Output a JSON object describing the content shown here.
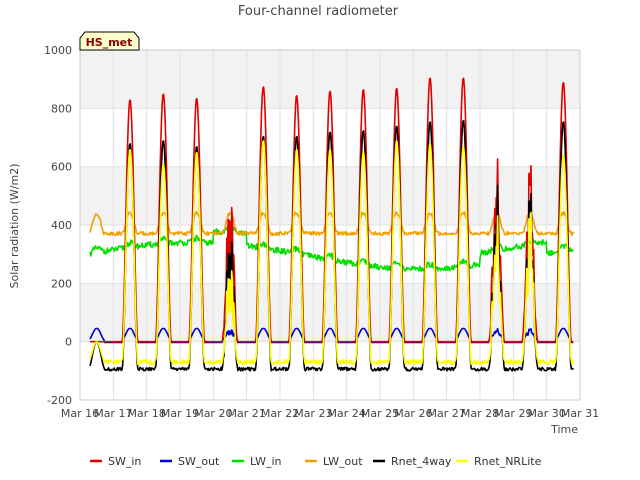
{
  "chart_data": {
    "type": "line",
    "title": "Four-channel radiometer",
    "xlabel": "Time",
    "ylabel": "Solar radiation (W/m2)",
    "badge": "HS_met",
    "ylim": [
      -200,
      1000
    ],
    "xlim": [
      16,
      31
    ],
    "yticks": [
      -200,
      0,
      200,
      400,
      600,
      800,
      1000
    ],
    "xticks": [
      {
        "v": 16,
        "label": "Mar 16"
      },
      {
        "v": 17,
        "label": "Mar 17"
      },
      {
        "v": 18,
        "label": "Mar 18"
      },
      {
        "v": 19,
        "label": "Mar 19"
      },
      {
        "v": 20,
        "label": "Mar 20"
      },
      {
        "v": 21,
        "label": "Mar 21"
      },
      {
        "v": 22,
        "label": "Mar 22"
      },
      {
        "v": 23,
        "label": "Mar 23"
      },
      {
        "v": 24,
        "label": "Mar 24"
      },
      {
        "v": 25,
        "label": "Mar 25"
      },
      {
        "v": 26,
        "label": "Mar 26"
      },
      {
        "v": 27,
        "label": "Mar 27"
      },
      {
        "v": 28,
        "label": "Mar 28"
      },
      {
        "v": 29,
        "label": "Mar 29"
      },
      {
        "v": 30,
        "label": "Mar 30"
      },
      {
        "v": 31,
        "label": "Mar 31"
      }
    ],
    "grid": true,
    "legend_position": "bottom",
    "x_range_data": [
      16.3,
      30.8
    ],
    "daily_peaks": [
      {
        "day": 17,
        "sw_in": 830,
        "rnet_4way": 680,
        "rnet_nrlite": 660
      },
      {
        "day": 18,
        "sw_in": 850,
        "rnet_4way": 690,
        "rnet_nrlite": 610
      },
      {
        "day": 19,
        "sw_in": 835,
        "rnet_4way": 670,
        "rnet_nrlite": 650
      },
      {
        "day": 20,
        "sw_in": 545,
        "rnet_4way": 420,
        "rnet_nrlite": 300
      },
      {
        "day": 21,
        "sw_in": 875,
        "rnet_4way": 705,
        "rnet_nrlite": 690
      },
      {
        "day": 22,
        "sw_in": 845,
        "rnet_4way": 705,
        "rnet_nrlite": 660
      },
      {
        "day": 23,
        "sw_in": 860,
        "rnet_4way": 720,
        "rnet_nrlite": 660
      },
      {
        "day": 24,
        "sw_in": 865,
        "rnet_4way": 725,
        "rnet_nrlite": 650
      },
      {
        "day": 25,
        "sw_in": 870,
        "rnet_4way": 740,
        "rnet_nrlite": 690
      },
      {
        "day": 26,
        "sw_in": 905,
        "rnet_4way": 755,
        "rnet_nrlite": 680
      },
      {
        "day": 27,
        "sw_in": 905,
        "rnet_4way": 760,
        "rnet_nrlite": 670
      },
      {
        "day": 28,
        "sw_in": 650,
        "rnet_4way": 560,
        "rnet_nrlite": 450
      },
      {
        "day": 29,
        "sw_in": 635,
        "rnet_4way": 540,
        "rnet_nrlite": 470
      },
      {
        "day": 30,
        "sw_in": 890,
        "rnet_4way": 755,
        "rnet_nrlite": 640
      }
    ],
    "series": [
      {
        "name": "SW_in",
        "color": "#e00000",
        "night_value": 0
      },
      {
        "name": "SW_out",
        "color": "#0000cc",
        "night_value": 0,
        "day_value": 40
      },
      {
        "name": "LW_in",
        "color": "#00e000",
        "typical_range": [
          260,
          370
        ]
      },
      {
        "name": "LW_out",
        "color": "#f0a000",
        "typical_range": [
          360,
          460
        ]
      },
      {
        "name": "Rnet_4way",
        "color": "#000000",
        "night_value": -90
      },
      {
        "name": "Rnet_NRLite",
        "color": "#ffff00",
        "night_value": -65
      }
    ]
  }
}
